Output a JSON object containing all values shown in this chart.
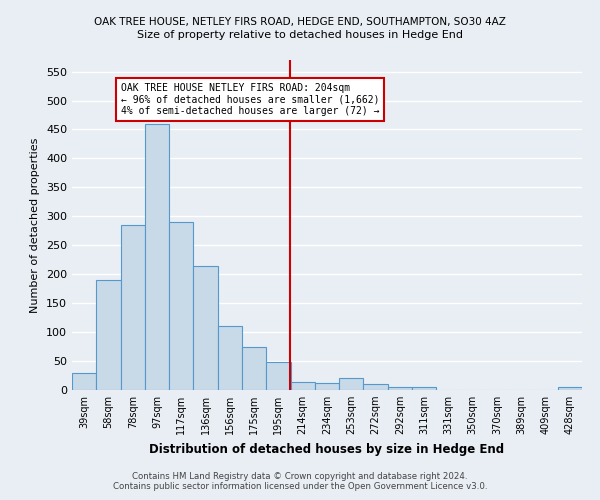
{
  "title1": "OAK TREE HOUSE, NETLEY FIRS ROAD, HEDGE END, SOUTHAMPTON, SO30 4AZ",
  "title2": "Size of property relative to detached houses in Hedge End",
  "xlabel": "Distribution of detached houses by size in Hedge End",
  "ylabel": "Number of detached properties",
  "categories": [
    "39sqm",
    "58sqm",
    "78sqm",
    "97sqm",
    "117sqm",
    "136sqm",
    "156sqm",
    "175sqm",
    "195sqm",
    "214sqm",
    "234sqm",
    "253sqm",
    "272sqm",
    "292sqm",
    "311sqm",
    "331sqm",
    "350sqm",
    "370sqm",
    "389sqm",
    "409sqm",
    "428sqm"
  ],
  "values": [
    30,
    190,
    285,
    460,
    290,
    215,
    110,
    75,
    48,
    13,
    12,
    20,
    10,
    5,
    5,
    0,
    0,
    0,
    0,
    0,
    5
  ],
  "bar_color": "#c8d9e8",
  "bar_edge_color": "#5599cc",
  "vline_color": "#cc0000",
  "annotation_text": "OAK TREE HOUSE NETLEY FIRS ROAD: 204sqm\n← 96% of detached houses are smaller (1,662)\n4% of semi-detached houses are larger (72) →",
  "annotation_box_color": "#ffffff",
  "annotation_box_edge_color": "#cc0000",
  "ylim": [
    0,
    570
  ],
  "yticks": [
    0,
    50,
    100,
    150,
    200,
    250,
    300,
    350,
    400,
    450,
    500,
    550
  ],
  "footer1": "Contains HM Land Registry data © Crown copyright and database right 2024.",
  "footer2": "Contains public sector information licensed under the Open Government Licence v3.0.",
  "bg_color": "#e8eef4",
  "grid_color": "#ffffff"
}
